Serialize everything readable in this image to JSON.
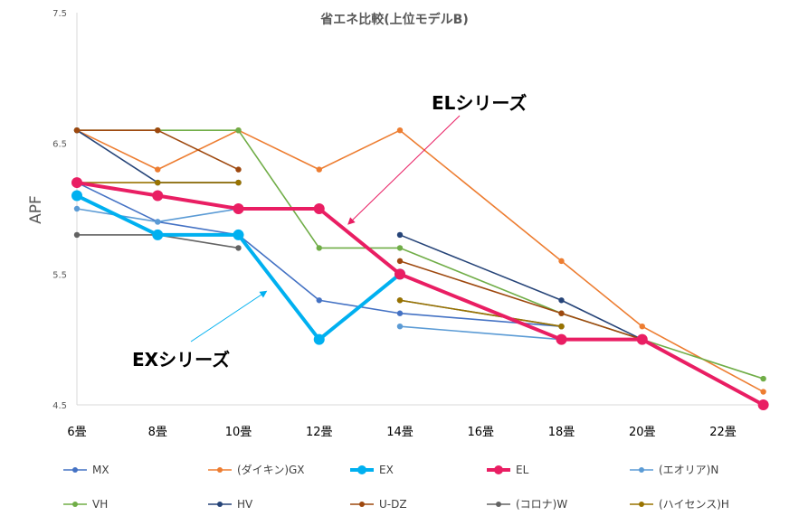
{
  "chart_data": {
    "type": "line",
    "title": "省エネ比較(上位モデルB)",
    "ylabel": "APF",
    "xlabel": "",
    "x_ticks": [
      "6畳",
      "8畳",
      "10畳",
      "12畳",
      "14畳",
      "16畳",
      "18畳",
      "20畳",
      "22畳"
    ],
    "ylim": [
      4.5,
      7.5
    ],
    "y_ticks": [
      "4.5",
      "5.5",
      "6.5",
      "7.5"
    ],
    "grid": false,
    "legend_position": "bottom",
    "annotations": [
      {
        "text": "ELシリーズ",
        "color": "#E91E63"
      },
      {
        "text": "EXシリーズ",
        "color": "#00B0F0"
      }
    ],
    "series": [
      {
        "name": "MX",
        "color": "#4472C4",
        "width": "thin",
        "points": [
          [
            6,
            6.2
          ],
          [
            8,
            5.9
          ],
          [
            10,
            5.8
          ],
          [
            12,
            5.3
          ],
          [
            14,
            5.2
          ],
          [
            18,
            5.1
          ]
        ]
      },
      {
        "name": "(ダイキン)GX",
        "color": "#ED7D31",
        "width": "thin",
        "points": [
          [
            6,
            6.6
          ],
          [
            8,
            6.3
          ],
          [
            10,
            6.6
          ],
          [
            12,
            6.3
          ],
          [
            14,
            6.6
          ],
          [
            18,
            5.6
          ],
          [
            20,
            5.1
          ],
          [
            23,
            4.6
          ]
        ]
      },
      {
        "name": "EX",
        "color": "#00B0F0",
        "width": "bold",
        "points": [
          [
            6,
            6.1
          ],
          [
            8,
            5.8
          ],
          [
            10,
            5.8
          ],
          [
            12,
            5.0
          ],
          [
            14,
            5.5
          ]
        ]
      },
      {
        "name": "EL",
        "color": "#E91E63",
        "width": "bold",
        "points": [
          [
            6,
            6.2
          ],
          [
            8,
            6.1
          ],
          [
            10,
            6.0
          ],
          [
            12,
            6.0
          ],
          [
            14,
            5.5
          ],
          [
            18,
            5.0
          ],
          [
            20,
            5.0
          ],
          [
            23,
            4.5
          ]
        ]
      },
      {
        "name": "(エオリア)N",
        "color": "#5B9BD5",
        "width": "thin",
        "points": [
          [
            6,
            6.0
          ],
          [
            8,
            5.9
          ],
          [
            10,
            6.0
          ],
          [
            14,
            5.1
          ],
          [
            18,
            5.0
          ]
        ]
      },
      {
        "name": "VH",
        "color": "#70AD47",
        "width": "thin",
        "points": [
          [
            6,
            6.6
          ],
          [
            8,
            6.6
          ],
          [
            10,
            6.6
          ],
          [
            12,
            5.7
          ],
          [
            14,
            5.7
          ],
          [
            18,
            5.2
          ],
          [
            20,
            5.0
          ],
          [
            23,
            4.7
          ]
        ]
      },
      {
        "name": "HV",
        "color": "#264478",
        "width": "thin",
        "points": [
          [
            6,
            6.6
          ],
          [
            8,
            6.2
          ],
          [
            10,
            6.2
          ],
          [
            14,
            5.8
          ],
          [
            18,
            5.3
          ],
          [
            20,
            5.0
          ]
        ]
      },
      {
        "name": "U-DZ",
        "color": "#9E480E",
        "width": "thin",
        "points": [
          [
            6,
            6.6
          ],
          [
            8,
            6.6
          ],
          [
            10,
            6.3
          ],
          [
            14,
            5.6
          ],
          [
            18,
            5.2
          ],
          [
            20,
            5.0
          ]
        ]
      },
      {
        "name": "(コロナ)W",
        "color": "#636363",
        "width": "thin",
        "points": [
          [
            6,
            5.8
          ],
          [
            8,
            5.8
          ],
          [
            10,
            5.7
          ],
          [
            14,
            5.3
          ],
          [
            18,
            5.1
          ]
        ]
      },
      {
        "name": "(ハイセンス)H",
        "color": "#997300",
        "width": "thin",
        "points": [
          [
            6,
            6.2
          ],
          [
            8,
            6.2
          ],
          [
            10,
            6.2
          ],
          [
            14,
            5.3
          ],
          [
            18,
            5.1
          ]
        ]
      }
    ]
  }
}
